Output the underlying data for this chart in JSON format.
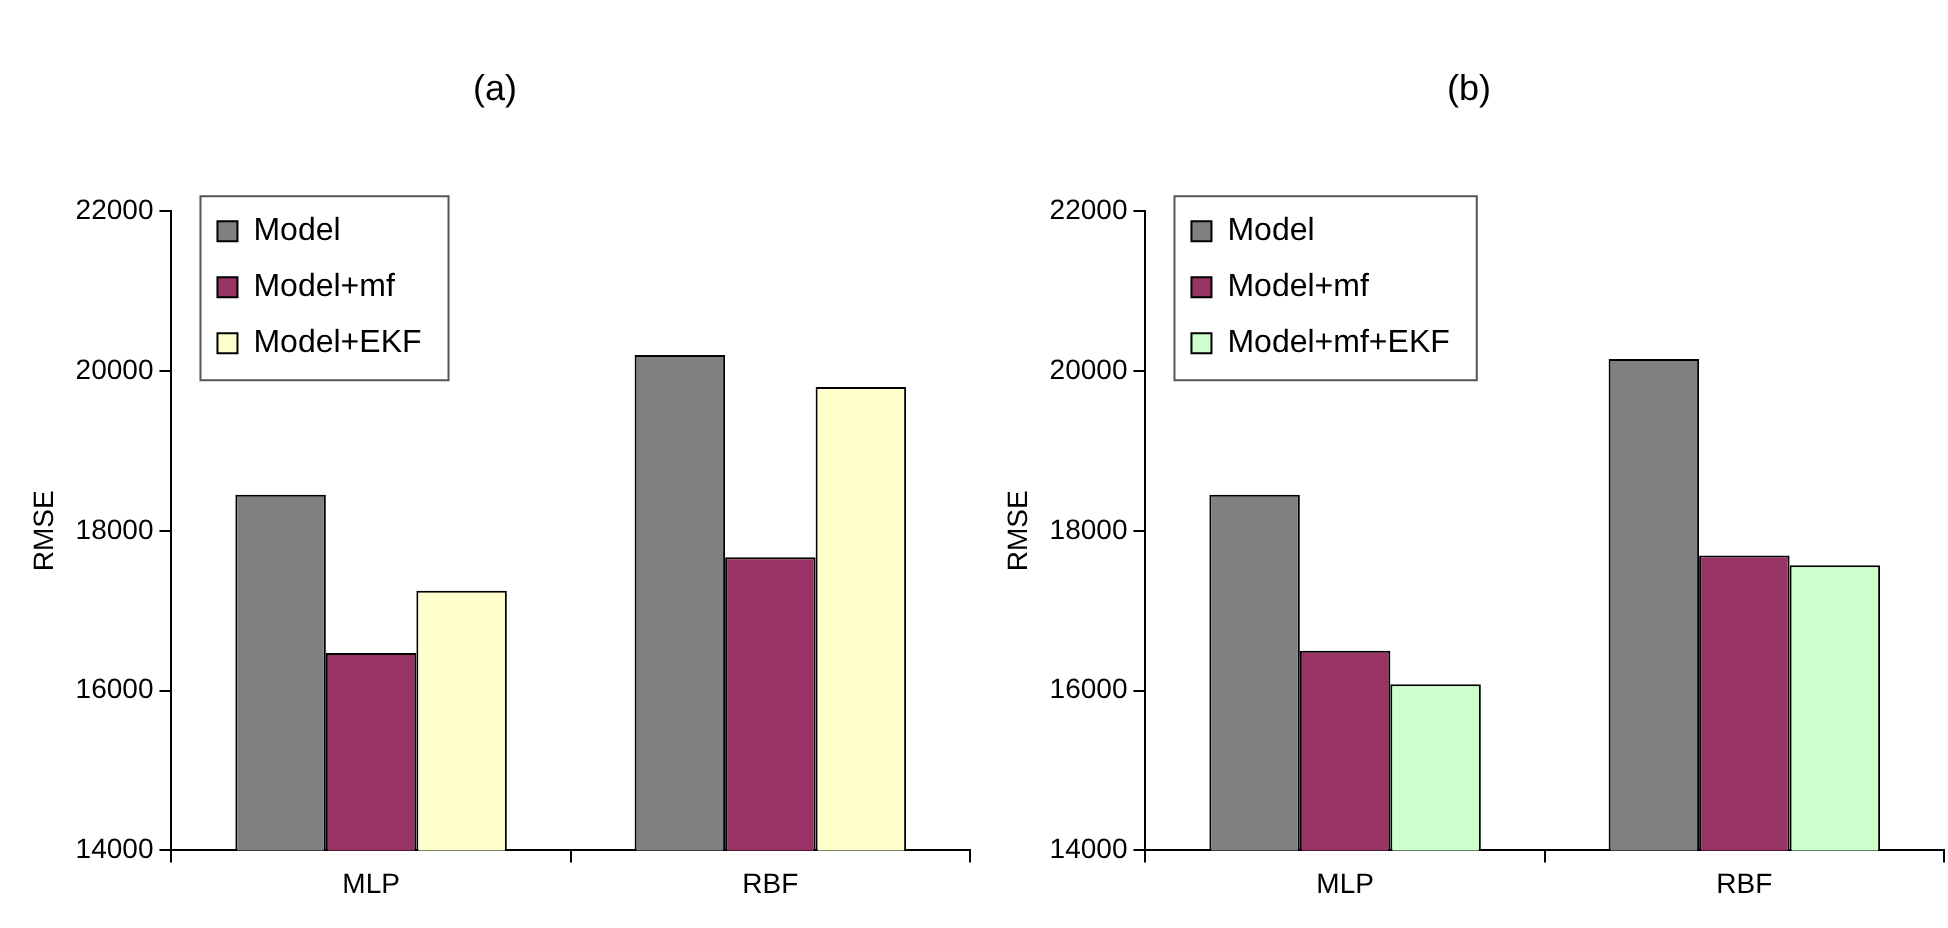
{
  "chart_data": [
    {
      "type": "bar",
      "title": "(a)",
      "ylabel": "RMSE",
      "categories": [
        "MLP",
        "RBF"
      ],
      "ylim": [
        14000,
        22000
      ],
      "yticks": [
        14000,
        16000,
        18000,
        20000,
        22000
      ],
      "grid": false,
      "legend": "top left",
      "series": [
        {
          "name": "Model",
          "color": "#808080",
          "values": [
            18450,
            20200
          ]
        },
        {
          "name": "Model+mf",
          "color": "#993366",
          "values": [
            16470,
            17670
          ]
        },
        {
          "name": "Model+EKF",
          "color": "#ffffcc",
          "values": [
            17250,
            19800
          ]
        }
      ]
    },
    {
      "type": "bar",
      "title": "(b)",
      "ylabel": "RMSE",
      "categories": [
        "MLP",
        "RBF"
      ],
      "ylim": [
        14000,
        22000
      ],
      "yticks": [
        14000,
        16000,
        18000,
        20000,
        22000
      ],
      "grid": false,
      "legend": "top left",
      "series": [
        {
          "name": "Model",
          "color": "#808080",
          "values": [
            18450,
            20150
          ]
        },
        {
          "name": "Model+mf",
          "color": "#993366",
          "values": [
            16500,
            17690
          ]
        },
        {
          "name": "Model+mf+EKF",
          "color": "#ccffcc",
          "values": [
            16080,
            17570
          ]
        }
      ]
    }
  ]
}
